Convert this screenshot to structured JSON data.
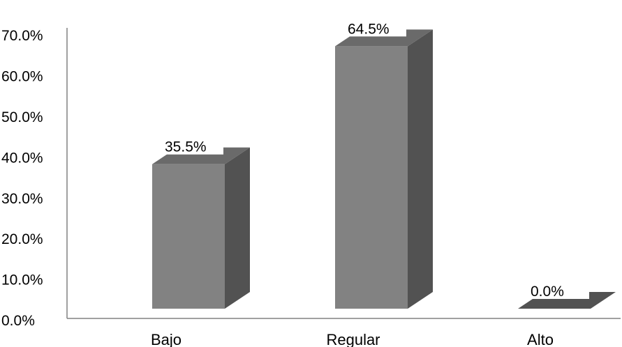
{
  "chart_data": {
    "type": "bar",
    "style": "3d-column",
    "categories": [
      "Bajo",
      "Regular",
      "Alto"
    ],
    "values": [
      35.5,
      64.5,
      0.0
    ],
    "data_labels": [
      "35.5%",
      "64.5%",
      "0.0%"
    ],
    "y_ticks": [
      "0.0%",
      "10.0%",
      "20.0%",
      "30.0%",
      "40.0%",
      "50.0%",
      "60.0%",
      "70.0%"
    ],
    "ylim": [
      0,
      70
    ],
    "y_unit": "%",
    "grid": false,
    "legend": "none",
    "colors": {
      "bar_front": "#828282",
      "bar_side": "#525252",
      "bar_top": "#6a6a6a",
      "axis": "#808080"
    }
  }
}
